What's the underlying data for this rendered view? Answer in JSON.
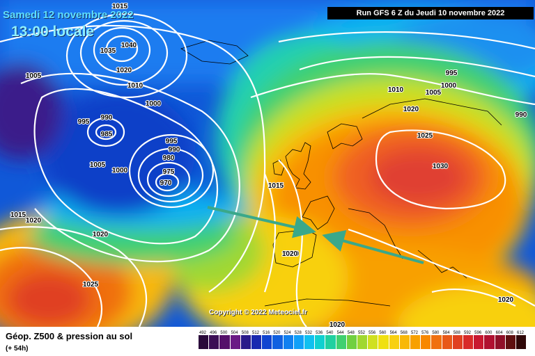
{
  "header": {
    "date": "Samedi 12 novembre 2022",
    "time": "13:00 locale",
    "run": "Run GFS 6 Z du Jeudi 10 novembre 2022"
  },
  "copyright": "Copyright © 2022 Meteociel.fr",
  "footer": {
    "title": "Géop. Z500 & pression au sol",
    "lead": "(+ 54h)"
  },
  "scale": {
    "values": [
      "492",
      "496",
      "500",
      "504",
      "508",
      "512",
      "516",
      "520",
      "524",
      "528",
      "532",
      "536",
      "540",
      "544",
      "548",
      "552",
      "556",
      "560",
      "564",
      "568",
      "572",
      "576",
      "580",
      "584",
      "588",
      "592",
      "596",
      "600",
      "604",
      "608",
      "612"
    ],
    "colors": [
      "#2a0a3a",
      "#3c0e55",
      "#55106a",
      "#6a1a85",
      "#2a1a8a",
      "#1a2ab0",
      "#1044d0",
      "#1060e0",
      "#1080f0",
      "#10a0f8",
      "#10c0f0",
      "#10d0d0",
      "#20d0a0",
      "#40d070",
      "#70d040",
      "#a0d830",
      "#d0e020",
      "#f0e010",
      "#f8d010",
      "#f8b808",
      "#f8a000",
      "#f88800",
      "#f07010",
      "#e85818",
      "#e04020",
      "#d82a28",
      "#c81830",
      "#b01030",
      "#901028",
      "#601010",
      "#300808"
    ]
  },
  "isobars": [
    {
      "label": "1015",
      "pos": "n"
    },
    {
      "label": "1040",
      "pos": "n"
    },
    {
      "label": "1035",
      "pos": "n"
    },
    {
      "label": "1020",
      "pos": "n"
    },
    {
      "label": "1010",
      "pos": "n"
    },
    {
      "label": "1005",
      "pos": "n"
    },
    {
      "label": "1000",
      "pos": "n"
    },
    {
      "label": "995",
      "pos": "n"
    },
    {
      "label": "990",
      "pos": "n"
    },
    {
      "label": "985",
      "pos": "n"
    },
    {
      "label": "1005",
      "pos": "n"
    },
    {
      "label": "1000",
      "pos": "n"
    },
    {
      "label": "995",
      "pos": "n"
    },
    {
      "label": "990",
      "pos": "n"
    },
    {
      "label": "980",
      "pos": "n"
    },
    {
      "label": "975",
      "pos": "n"
    },
    {
      "label": "970",
      "pos": "n"
    },
    {
      "label": "1015",
      "pos": "n"
    },
    {
      "label": "1020",
      "pos": "n"
    },
    {
      "label": "1020",
      "pos": "n"
    },
    {
      "label": "1025",
      "pos": "n"
    },
    {
      "label": "1015",
      "pos": "n"
    },
    {
      "label": "1020",
      "pos": "n"
    },
    {
      "label": "1010",
      "pos": "n"
    },
    {
      "label": "1005",
      "pos": "n"
    },
    {
      "label": "1000",
      "pos": "n"
    },
    {
      "label": "995",
      "pos": "n"
    },
    {
      "label": "990",
      "pos": "n"
    },
    {
      "label": "1020",
      "pos": "n"
    },
    {
      "label": "1025",
      "pos": "n"
    },
    {
      "label": "1030",
      "pos": "n"
    },
    {
      "label": "1020",
      "pos": "n"
    },
    {
      "label": "1020",
      "pos": "n"
    },
    {
      "label": "1020",
      "pos": "n"
    }
  ]
}
